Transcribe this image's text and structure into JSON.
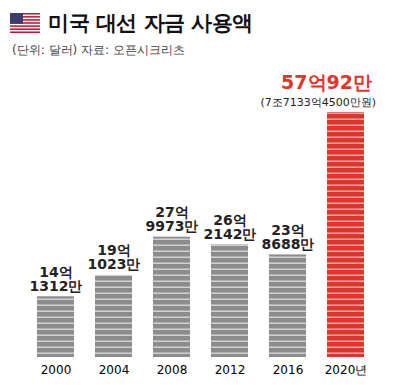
{
  "chart_data": {
    "type": "bar",
    "title": "미국 대선 자금 사용액",
    "subtitle": "(단위: 달러) 자료: 오픈시크리츠",
    "categories": [
      "2000",
      "2004",
      "2008",
      "2012",
      "2016",
      "2020년"
    ],
    "values": [
      1413120000,
      1910230000,
      2799730000,
      2621420000,
      2386880000,
      5700920000
    ],
    "value_labels": [
      "14억\n1312만",
      "19억\n1023만",
      "27억\n9973만",
      "26억\n2142만",
      "23억\n8688만",
      "57억92만"
    ],
    "colors": [
      "#8c8c8c",
      "#8c8c8c",
      "#8c8c8c",
      "#8c8c8c",
      "#8c8c8c",
      "#e3342b"
    ],
    "data_labels": true,
    "tick_labels": "x",
    "annotations": [
      {
        "category": "2020년",
        "text": "(7조7133억4500만원)"
      }
    ]
  }
}
